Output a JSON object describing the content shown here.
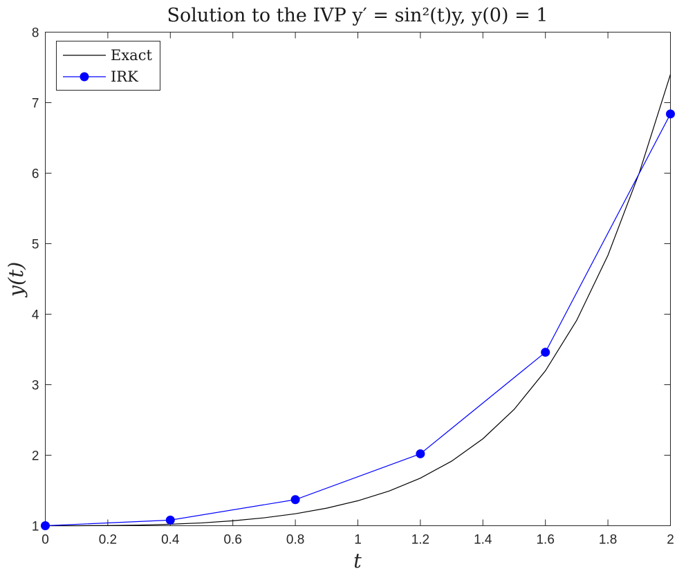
{
  "chart_data": {
    "type": "line",
    "title": "Solution to the IVP y′ = sin²(t)y, y(0) = 1",
    "xlabel": "t",
    "ylabel": "y(t)",
    "xlim": [
      0,
      2
    ],
    "ylim": [
      1,
      8
    ],
    "xticks": [
      0,
      0.2,
      0.4,
      0.6,
      0.8,
      1,
      1.2,
      1.4,
      1.6,
      1.8,
      2
    ],
    "xtick_labels": [
      "0",
      "0.2",
      "0.4",
      "0.6",
      "0.8",
      "1",
      "1.2",
      "1.4",
      "1.6",
      "1.8",
      "2"
    ],
    "yticks": [
      1,
      2,
      3,
      4,
      5,
      6,
      7,
      8
    ],
    "ytick_labels": [
      "1",
      "2",
      "3",
      "4",
      "5",
      "6",
      "7",
      "8"
    ],
    "grid": false,
    "legend_position": "top-left",
    "series": [
      {
        "name": "Exact",
        "color": "#000000",
        "marker": "none",
        "x": [
          0,
          0.1,
          0.2,
          0.3,
          0.4,
          0.5,
          0.6,
          0.7,
          0.8,
          0.9,
          1.0,
          1.1,
          1.2,
          1.3,
          1.4,
          1.5,
          1.6,
          1.7,
          1.8,
          1.9,
          2.0
        ],
        "y": [
          1.0,
          1.0,
          1.003,
          1.009,
          1.021,
          1.04,
          1.07,
          1.112,
          1.17,
          1.249,
          1.354,
          1.492,
          1.675,
          1.916,
          2.233,
          2.65,
          3.197,
          3.912,
          4.835,
          6.0,
          7.4
        ]
      },
      {
        "name": "IRK",
        "color": "#0000ff",
        "marker": "circle",
        "x": [
          0,
          0.4,
          0.8,
          1.2,
          1.6,
          2.0
        ],
        "y": [
          1.0,
          1.08,
          1.37,
          2.02,
          3.46,
          6.84
        ]
      }
    ]
  }
}
